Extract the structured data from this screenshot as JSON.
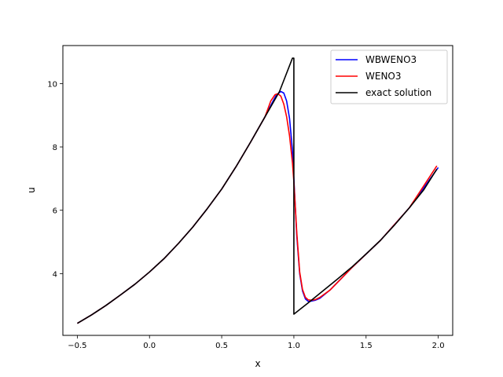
{
  "chart_data": {
    "type": "line",
    "title": "",
    "xlabel": "x",
    "ylabel": "u",
    "xlim": [
      -0.6,
      2.1
    ],
    "ylim": [
      2.05,
      11.2
    ],
    "xticks": [
      -0.5,
      0.0,
      0.5,
      1.0,
      1.5,
      2.0
    ],
    "xtick_labels": [
      "−0.5",
      "0.0",
      "0.5",
      "1.0",
      "1.5",
      "2.0"
    ],
    "yticks": [
      4,
      6,
      8,
      10
    ],
    "ytick_labels": [
      "4",
      "6",
      "8",
      "10"
    ],
    "grid": false,
    "legend_position": "top-right",
    "series": [
      {
        "name": "WBWENO3",
        "color": "#0000ff",
        "x": [
          -0.5,
          -0.4,
          -0.3,
          -0.2,
          -0.1,
          0.0,
          0.1,
          0.2,
          0.3,
          0.4,
          0.5,
          0.6,
          0.7,
          0.8,
          0.85,
          0.88,
          0.91,
          0.93,
          0.95,
          0.97,
          0.99,
          1.0,
          1.02,
          1.04,
          1.06,
          1.08,
          1.1,
          1.12,
          1.15,
          1.18,
          1.25,
          1.4,
          1.6,
          1.8,
          2.0
        ],
        "y": [
          2.43,
          2.7,
          3.0,
          3.33,
          3.67,
          4.05,
          4.47,
          4.95,
          5.47,
          6.05,
          6.67,
          7.38,
          8.15,
          8.95,
          9.4,
          9.65,
          9.75,
          9.7,
          9.45,
          8.9,
          7.9,
          7.0,
          5.2,
          4.0,
          3.45,
          3.2,
          3.12,
          3.13,
          3.16,
          3.22,
          3.48,
          4.18,
          5.05,
          6.08,
          7.35
        ]
      },
      {
        "name": "WENO3",
        "color": "#ff0000",
        "x": [
          -0.5,
          -0.4,
          -0.3,
          -0.2,
          -0.1,
          0.0,
          0.1,
          0.2,
          0.3,
          0.4,
          0.5,
          0.6,
          0.7,
          0.8,
          0.84,
          0.87,
          0.89,
          0.91,
          0.93,
          0.95,
          0.97,
          0.99,
          1.0,
          1.02,
          1.04,
          1.06,
          1.08,
          1.1,
          1.12,
          1.15,
          1.18,
          1.25,
          1.4,
          1.6,
          1.8,
          1.99
        ],
        "y": [
          2.43,
          2.7,
          3.0,
          3.33,
          3.67,
          4.05,
          4.47,
          4.95,
          5.47,
          6.05,
          6.67,
          7.38,
          8.15,
          8.95,
          9.45,
          9.65,
          9.68,
          9.6,
          9.35,
          8.95,
          8.35,
          7.5,
          6.9,
          5.3,
          4.05,
          3.5,
          3.25,
          3.17,
          3.16,
          3.18,
          3.25,
          3.48,
          4.18,
          5.05,
          6.08,
          7.4
        ]
      },
      {
        "name": "exact solution",
        "color": "#000000",
        "x": [
          -0.5,
          -0.4,
          -0.3,
          -0.2,
          -0.1,
          0.0,
          0.1,
          0.2,
          0.3,
          0.4,
          0.5,
          0.6,
          0.7,
          0.8,
          0.9,
          0.99,
          1.0,
          1.0,
          1.1,
          1.2,
          1.3,
          1.4,
          1.5,
          1.6,
          1.7,
          1.8,
          1.9,
          1.99
        ],
        "y": [
          2.43,
          2.7,
          3.0,
          3.33,
          3.67,
          4.05,
          4.47,
          4.95,
          5.47,
          6.05,
          6.67,
          7.38,
          8.15,
          8.95,
          9.75,
          10.8,
          10.8,
          2.72,
          3.08,
          3.45,
          3.82,
          4.2,
          4.62,
          5.05,
          5.55,
          6.08,
          6.65,
          7.3
        ]
      }
    ]
  }
}
